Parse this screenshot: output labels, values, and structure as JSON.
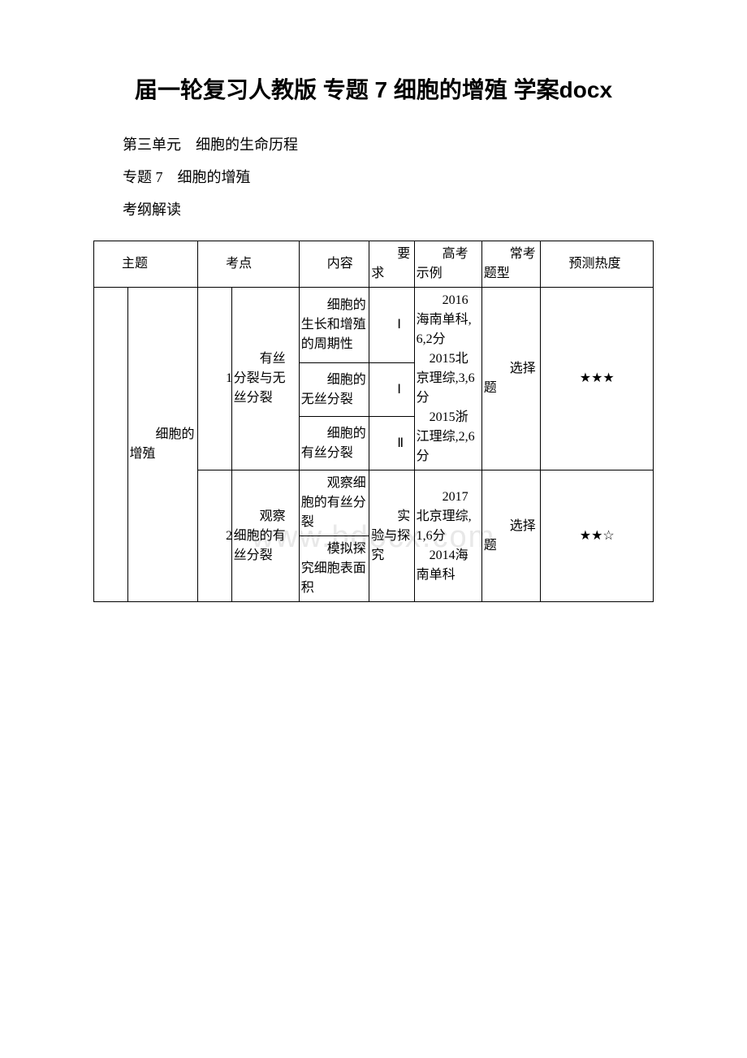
{
  "watermark": "www.bdocx.com",
  "title": "届一轮复习人教版 专题 7 细胞的增殖 学案docx",
  "lines": [
    "第三单元　细胞的生命历程",
    "专题 7　细胞的增殖",
    "考纲解读"
  ],
  "table": {
    "header": {
      "topic": "主题",
      "exam_point": "考点",
      "content": "内容",
      "requirement": "要求",
      "example": "高考示例",
      "qtype": "常考题型",
      "heat": "预测热度"
    },
    "rows": {
      "topic": "细胞的增殖",
      "point1_num": "1",
      "point1_name": "有丝分裂与无丝分裂",
      "point1_c1": "细胞的生长和增殖的周期性",
      "point1_r1": "Ⅰ",
      "point1_c2": "细胞的无丝分裂",
      "point1_r2": "Ⅰ",
      "point1_c3": "细胞的有丝分裂",
      "point1_r3": "Ⅱ",
      "point1_ex": "2016海南单科,6,2分\n　2015北京理综,3,6分\n　2015浙江理综,2,6分",
      "point1_qtype": "选择题",
      "point1_heat": "★★★",
      "point2_num": "2",
      "point2_name": "观察细胞的有丝分裂",
      "point2_c1": "观察细胞的有丝分裂",
      "point2_c2": "模拟探究细胞表面积",
      "point2_req": "实验与探究",
      "point2_ex": "2017北京理综,1,6分\n　2014海南单科",
      "point2_qtype": "选择题",
      "point2_heat": "★★☆"
    },
    "styling": {
      "border_color": "#000000",
      "font_size": 16,
      "bg_color": "#ffffff",
      "col_widths_pct": [
        6,
        12.5,
        6,
        12,
        12.5,
        8,
        12,
        10.5,
        20
      ]
    }
  }
}
